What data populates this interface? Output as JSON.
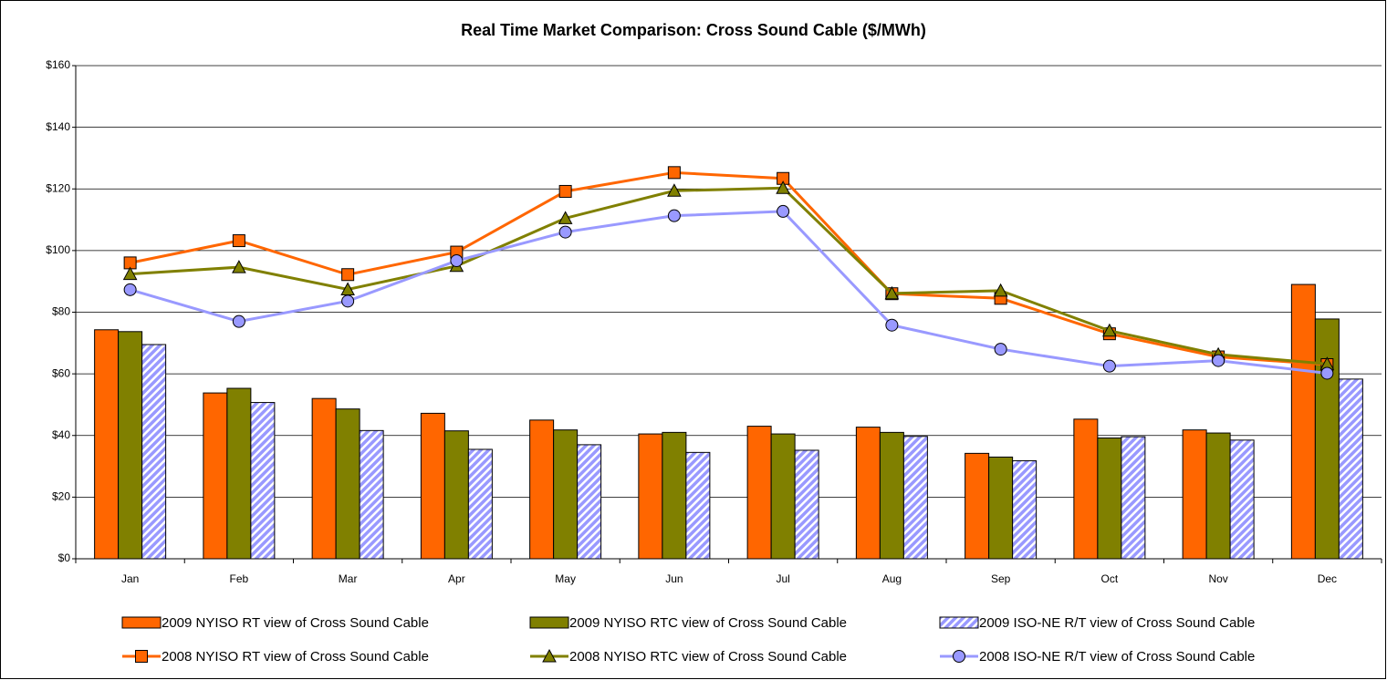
{
  "chart_data": {
    "type": "bar",
    "title": "Real Time Market Comparison: Cross Sound Cable ($/MWh)",
    "categories": [
      "Jan",
      "Feb",
      "Mar",
      "Apr",
      "May",
      "Jun",
      "Jul",
      "Aug",
      "Sep",
      "Oct",
      "Nov",
      "Dec"
    ],
    "ylim": [
      0,
      160
    ],
    "yticks": [
      {
        "value": 0,
        "label": "$0"
      },
      {
        "value": 20,
        "label": "$20"
      },
      {
        "value": 40,
        "label": "$40"
      },
      {
        "value": 60,
        "label": "$60"
      },
      {
        "value": 80,
        "label": "$80"
      },
      {
        "value": 100,
        "label": "$100"
      },
      {
        "value": 120,
        "label": "$120"
      },
      {
        "value": 140,
        "label": "$140"
      },
      {
        "value": 160,
        "label": "$160"
      }
    ],
    "grid": true,
    "legend": "bottom",
    "series": [
      {
        "name": "2009 NYISO RT view of Cross Sound Cable",
        "type": "bar",
        "color": "#ff6600",
        "values": [
          74.3,
          53.8,
          52,
          47.2,
          45,
          40.5,
          43,
          42.7,
          34.2,
          45.3,
          41.8,
          89
        ]
      },
      {
        "name": "2009 NYISO RTC view of Cross Sound Cable",
        "type": "bar",
        "color": "#808000",
        "values": [
          73.7,
          55.3,
          48.6,
          41.5,
          41.8,
          41,
          40.5,
          41,
          33,
          39.2,
          40.8,
          77.8
        ]
      },
      {
        "name": "2009 ISO-NE R/T view of Cross Sound Cable",
        "type": "bar",
        "color": "#9999ff",
        "pattern": "hatch",
        "values": [
          69.5,
          50.7,
          41.6,
          35.5,
          37,
          34.5,
          35.2,
          39.7,
          31.8,
          39.6,
          38.5,
          58.3
        ]
      },
      {
        "name": "2008 NYISO RT view of Cross Sound Cable",
        "type": "line",
        "color": "#ff6600",
        "marker": "square",
        "values": [
          96,
          103.2,
          92.2,
          99.5,
          119.2,
          125.3,
          123.4,
          86,
          84.5,
          73,
          65.5,
          63
        ]
      },
      {
        "name": "2008 NYISO RTC view of Cross Sound Cable",
        "type": "line",
        "color": "#808000",
        "marker": "triangle",
        "values": [
          92.4,
          94.6,
          87.4,
          95,
          110.5,
          119.4,
          120.3,
          86.1,
          87,
          74,
          66.3,
          63.2
        ]
      },
      {
        "name": "2008 ISO-NE R/T view of Cross Sound Cable",
        "type": "line",
        "color": "#9999ff",
        "marker": "circle",
        "values": [
          87.3,
          77,
          83.6,
          96.7,
          106,
          111.3,
          112.7,
          75.8,
          68,
          62.5,
          64.3,
          60.2
        ]
      }
    ]
  }
}
